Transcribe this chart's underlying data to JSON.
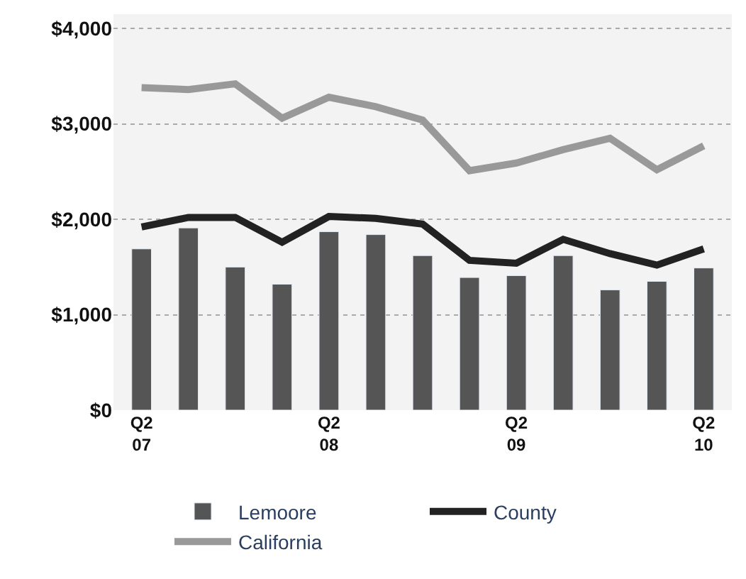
{
  "chart_data": {
    "type": "bar",
    "categories": [
      "Q2 07",
      null,
      null,
      null,
      "Q2 08",
      null,
      null,
      null,
      "Q2 09",
      null,
      null,
      null,
      "Q2 10"
    ],
    "series": [
      {
        "name": "Lemoore",
        "color": "#555555",
        "values": [
          1690,
          1910,
          1500,
          1320,
          1870,
          1840,
          1620,
          1390,
          1410,
          1620,
          1260,
          1350,
          1490
        ]
      },
      {
        "name": "County",
        "type": "line",
        "color": "#222222",
        "values": [
          1920,
          2020,
          2020,
          1760,
          2030,
          2010,
          1950,
          1570,
          1540,
          1790,
          1640,
          1520,
          1690
        ]
      },
      {
        "name": "California",
        "type": "line",
        "color": "#999999",
        "values": [
          3380,
          3360,
          3420,
          3060,
          3280,
          3180,
          3040,
          2510,
          2590,
          2730,
          2850,
          2520,
          2770
        ]
      }
    ],
    "ylim": [
      0,
      4150
    ],
    "yticks": [
      {
        "value": 0,
        "label": "$0"
      },
      {
        "value": 1000,
        "label": "$1,000"
      },
      {
        "value": 2000,
        "label": "$2,000"
      },
      {
        "value": 3000,
        "label": "$3,000"
      },
      {
        "value": 4000,
        "label": "$4,000"
      }
    ],
    "grid": "y",
    "legend": "bottom",
    "marker": "none"
  }
}
